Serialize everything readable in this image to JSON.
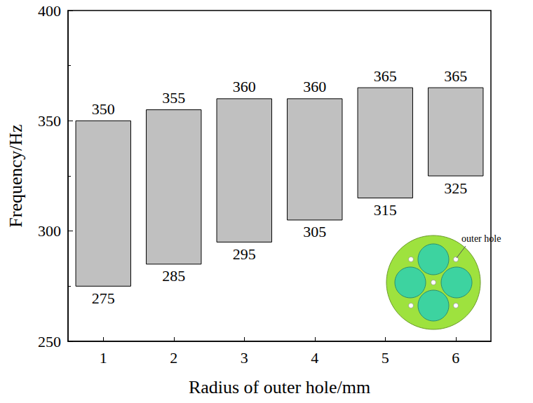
{
  "chart_data": {
    "type": "range_bar",
    "x_label": "Radius of outer hole/mm",
    "y_label": "Frequency/Hz",
    "categories": [
      "1",
      "2",
      "3",
      "4",
      "5",
      "6"
    ],
    "values": [
      [
        275,
        350
      ],
      [
        285,
        355
      ],
      [
        295,
        360
      ],
      [
        305,
        360
      ],
      [
        315,
        365
      ],
      [
        325,
        365
      ]
    ],
    "color": "#c0c0c0",
    "ylim": [
      250,
      400
    ],
    "yticks": [
      250,
      300,
      350,
      400
    ],
    "data_labels": true,
    "grid": false,
    "annotations": [
      "outer hole"
    ]
  }
}
